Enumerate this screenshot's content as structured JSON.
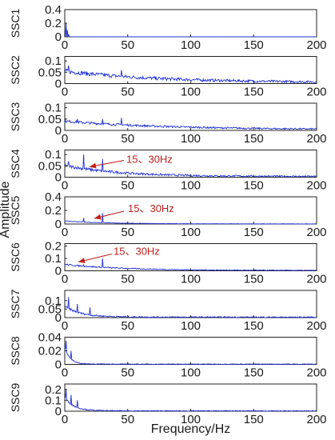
{
  "chart_data": {
    "type": "line",
    "xlabel": "Frequency/Hz",
    "ylabel": "Amplitude",
    "xlim": [
      0,
      200
    ],
    "xticks": [
      "0",
      "50",
      "100",
      "150",
      "200"
    ],
    "line_color": "#1f2fd6",
    "annotation_color": "#c0201c",
    "panels": [
      {
        "name": "SSC1",
        "ylim": [
          0,
          0.4
        ],
        "yticks": [
          "0",
          "0.2",
          "0.4"
        ],
        "noise": 0.002,
        "peaks": [
          [
            1,
            0.2
          ],
          [
            2,
            0.1
          ],
          [
            3,
            0.04
          ]
        ],
        "decay": 0,
        "decay_tau": 5,
        "annotation": ""
      },
      {
        "name": "SSC2",
        "ylim": [
          0,
          0.12
        ],
        "yticks": [
          "0",
          "0.05",
          "0.1"
        ],
        "noise": 0.02,
        "peaks": [
          [
            3,
            0.08
          ],
          [
            15,
            0.05
          ],
          [
            30,
            0.045
          ],
          [
            45,
            0.06
          ]
        ],
        "decay": 0.045,
        "decay_tau": 70,
        "annotation": ""
      },
      {
        "name": "SSC3",
        "ylim": [
          0,
          0.12
        ],
        "yticks": [
          "0",
          "0.05",
          "0.1"
        ],
        "noise": 0.012,
        "peaks": [
          [
            10,
            0.05
          ],
          [
            30,
            0.05
          ],
          [
            45,
            0.055
          ]
        ],
        "decay": 0.035,
        "decay_tau": 80,
        "annotation": ""
      },
      {
        "name": "SSC4",
        "ylim": [
          0,
          0.12
        ],
        "yticks": [
          "0",
          "0.05",
          "0.1"
        ],
        "noise": 0.015,
        "peaks": [
          [
            15,
            0.1
          ],
          [
            30,
            0.08
          ],
          [
            3,
            0.07
          ]
        ],
        "decay": 0.045,
        "decay_tau": 40,
        "annotation": "15、30Hz"
      },
      {
        "name": "SSC5",
        "ylim": [
          0,
          0.4
        ],
        "yticks": [
          "0",
          "0.2",
          "0.4"
        ],
        "noise": 0.01,
        "peaks": [
          [
            15,
            0.09
          ],
          [
            30,
            0.16
          ]
        ],
        "decay": 0.04,
        "decay_tau": 30,
        "annotation": "15、30Hz"
      },
      {
        "name": "SSC6",
        "ylim": [
          0,
          0.22
        ],
        "yticks": [
          "0",
          "0.1",
          "0.2"
        ],
        "noise": 0.012,
        "peaks": [
          [
            15,
            0.05
          ],
          [
            30,
            0.1
          ]
        ],
        "decay": 0.045,
        "decay_tau": 45,
        "annotation": "15、30Hz"
      },
      {
        "name": "SSC7",
        "ylim": [
          0,
          0.16
        ],
        "yticks": [
          "0",
          "0.05",
          "0.1"
        ],
        "noise": 0.014,
        "peaks": [
          [
            3,
            0.12
          ],
          [
            10,
            0.08
          ],
          [
            20,
            0.06
          ]
        ],
        "decay": 0.06,
        "decay_tau": 12,
        "annotation": ""
      },
      {
        "name": "SSC8",
        "ylim": [
          0,
          0.04
        ],
        "yticks": [
          "0",
          "0.02",
          "0.04"
        ],
        "noise": 0.002,
        "peaks": [
          [
            1,
            0.035
          ],
          [
            5,
            0.02
          ]
        ],
        "decay": 0.025,
        "decay_tau": 4,
        "annotation": ""
      },
      {
        "name": "SSC9",
        "ylim": [
          0,
          0.25
        ],
        "yticks": [
          "0",
          "0.1",
          "0.2"
        ],
        "noise": 0.015,
        "peaks": [
          [
            1,
            0.2
          ],
          [
            5,
            0.15
          ],
          [
            10,
            0.1
          ]
        ],
        "decay": 0.12,
        "decay_tau": 7,
        "annotation": ""
      }
    ]
  }
}
